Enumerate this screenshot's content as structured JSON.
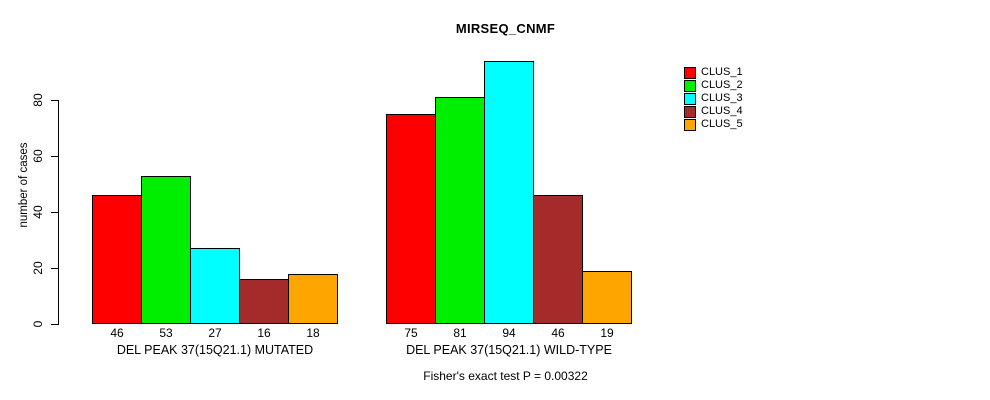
{
  "chart_data": {
    "type": "bar",
    "title": "MIRSEQ_CNMF",
    "xlabel": "",
    "ylabel": "number of cases",
    "annotation": "Fisher's exact test P = 0.00322",
    "categories": [
      "DEL PEAK 37(15Q21.1) MUTATED",
      "DEL PEAK 37(15Q21.1) WILD-TYPE"
    ],
    "series": [
      {
        "name": "CLUS_1",
        "color": "#FF0000",
        "values": [
          46,
          75
        ]
      },
      {
        "name": "CLUS_2",
        "color": "#00EE00",
        "values": [
          53,
          81
        ]
      },
      {
        "name": "CLUS_3",
        "color": "#00FFFF",
        "values": [
          27,
          94
        ]
      },
      {
        "name": "CLUS_4",
        "color": "#A52A2A",
        "values": [
          16,
          46
        ]
      },
      {
        "name": "CLUS_5",
        "color": "#FFA500",
        "values": [
          18,
          19
        ]
      }
    ],
    "bar_value_labels": [
      [
        46,
        53,
        27,
        16,
        18
      ],
      [
        75,
        81,
        94,
        46,
        19
      ]
    ],
    "yticks": [
      0,
      20,
      40,
      60,
      80
    ],
    "ylim": [
      0,
      94
    ],
    "grid": false,
    "legend_position": "right",
    "background_color": "#FFFFFF",
    "axis_color": "#000000"
  }
}
